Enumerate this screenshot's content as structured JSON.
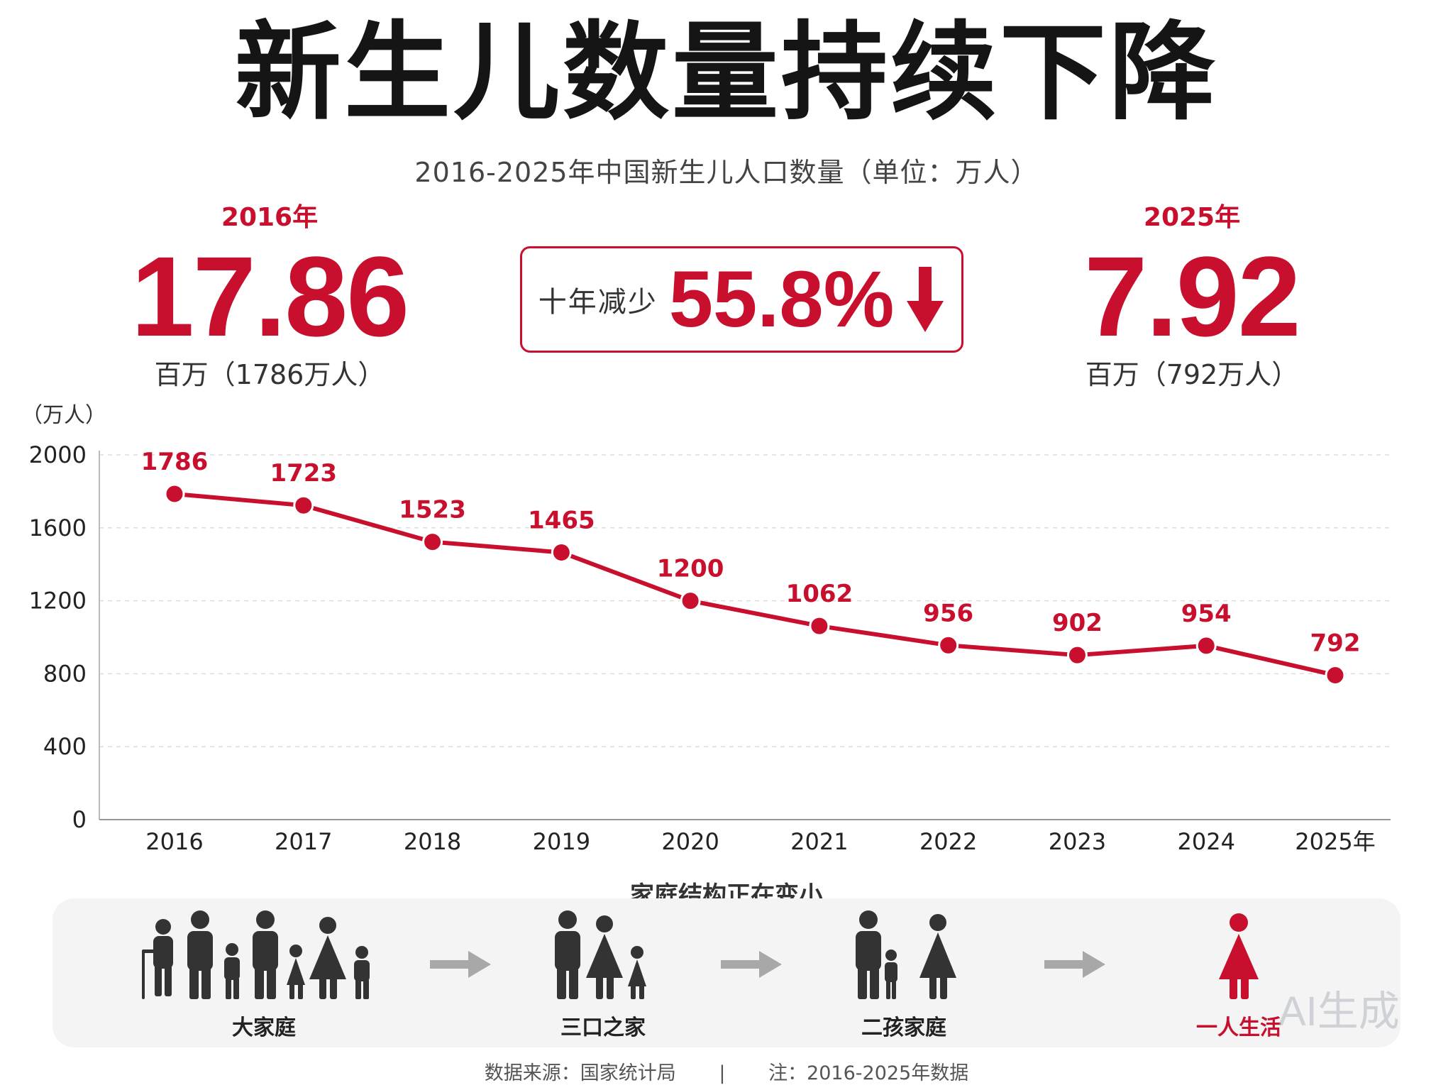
{
  "title": "新生儿数量持续下降",
  "subtitle": "2016-2025年中国新生儿人口数量（单位：万人）",
  "stats": {
    "left": {
      "year": "2016年",
      "value": "17.86",
      "unit": "百万（1786万人）"
    },
    "right": {
      "year": "2025年",
      "value": "7.92",
      "unit": "百万（792万人）"
    },
    "decline": {
      "label": "十年减少",
      "value": "55.8%"
    }
  },
  "colors": {
    "accent": "#c8102e",
    "grid": "#dddddd",
    "icon_gray": "#333333",
    "arrow_gray": "#a8a8a8"
  },
  "chart_data": {
    "type": "line",
    "title": "2016-2025年中国新生儿人口数量（单位：万人）",
    "ylabel": "（万人）",
    "categories": [
      "2016",
      "2017",
      "2018",
      "2019",
      "2020",
      "2021",
      "2022",
      "2023",
      "2024",
      "2025年"
    ],
    "values": [
      1786,
      1723,
      1523,
      1465,
      1200,
      1062,
      956,
      902,
      954,
      792
    ],
    "ylim": [
      0,
      2000
    ],
    "yticks": [
      0,
      400,
      800,
      1200,
      1600,
      2000
    ],
    "grid": true,
    "legend": "none"
  },
  "family": {
    "title": "家庭结构正在变小",
    "stages": [
      {
        "label": "大家庭",
        "icon": "extended-family-icon"
      },
      {
        "label": "三口之家",
        "icon": "nuclear-family-icon"
      },
      {
        "label": "二孩家庭",
        "icon": "two-child-family-icon"
      },
      {
        "label": "一人生活",
        "icon": "single-person-icon"
      }
    ]
  },
  "watermark": "AI生成",
  "footer": {
    "source": "数据来源：国家统计局",
    "separator": "|",
    "note": "注：2016-2025年数据"
  }
}
